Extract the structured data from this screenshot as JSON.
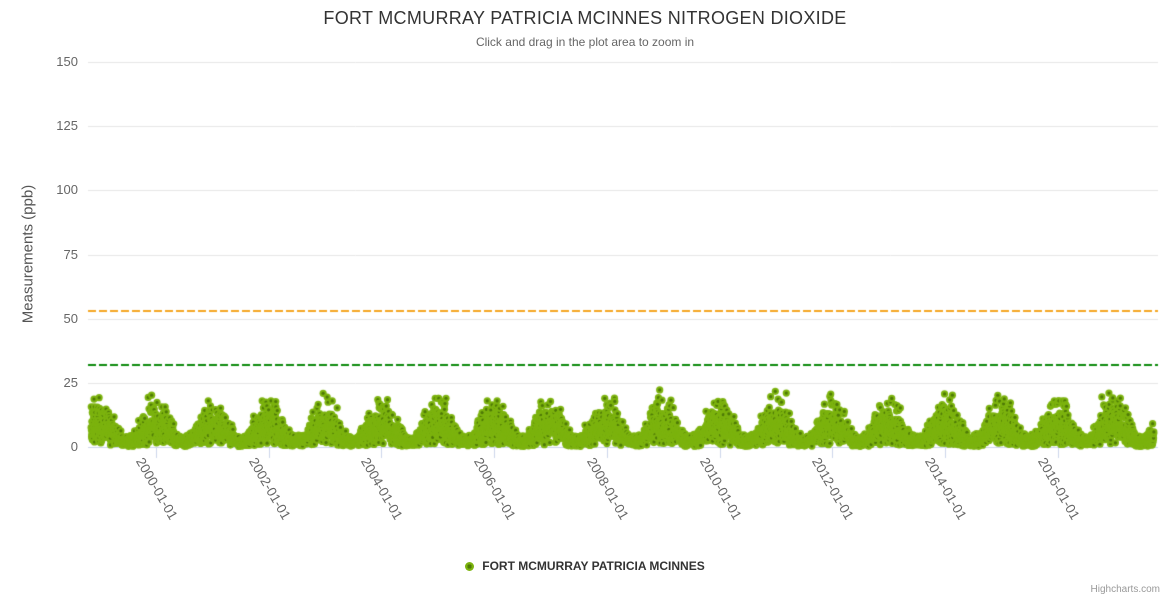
{
  "chart_data": {
    "type": "scatter",
    "title": "FORT MCMURRAY PATRICIA MCINNES NITROGEN DIOXIDE",
    "subtitle": "Click and drag in the plot area to zoom in",
    "ylabel": "Measurements (ppb)",
    "ylim": [
      0,
      150
    ],
    "yticks": [
      0,
      25,
      50,
      75,
      100,
      125,
      150
    ],
    "xticks": [
      "2000-01-01",
      "2002-01-01",
      "2004-01-01",
      "2006-01-01",
      "2008-01-01",
      "2010-01-01",
      "2012-01-01",
      "2014-01-01",
      "2016-01-01"
    ],
    "xtick_years": [
      2000,
      2002,
      2004,
      2006,
      2008,
      2010,
      2012,
      2014,
      2016
    ],
    "x_range": [
      "1998-11-01",
      "2017-09-30"
    ],
    "grid": true,
    "legend_position": "bottom-center",
    "series": [
      {
        "name": "FORT MCMURRAY PATRICIA MCINNES",
        "type": "scatter",
        "color": "#7CB30E",
        "marker_core_color": "#4E7A06",
        "cadence": "daily",
        "seasonal_pattern": {
          "peak_month": "January",
          "trough_month": "July",
          "winter_typical_ppb": [
            2,
            18
          ],
          "summer_typical_ppb": [
            0,
            6
          ],
          "overall_min_ppb": 0,
          "overall_max_ppb": 28
        },
        "annual_winter_max_ppb": [
          20,
          23,
          18,
          18,
          22,
          21,
          19,
          18,
          21,
          22,
          26,
          25,
          28,
          21,
          26,
          27,
          22,
          18,
          21
        ]
      }
    ],
    "plot_lines": [
      {
        "value": 53,
        "color": "#F5A623",
        "style": "dashed",
        "width": 2
      },
      {
        "value": 32,
        "color": "#0B8A0B",
        "style": "dashed",
        "width": 2
      }
    ],
    "generator": {
      "seed": 42,
      "points_per_year": 365,
      "start_year": 1998.84,
      "end_year": 2017.72
    }
  },
  "legend": {
    "label": "FORT MCMURRAY PATRICIA MCINNES"
  },
  "credit": "Highcharts.com",
  "theme": {
    "grid_color": "#E6E6E6",
    "axis_color": "#CCD6EB",
    "title_color": "#333333",
    "subtitle_color": "#666666",
    "label_color": "#666666",
    "credit_color": "#999999"
  }
}
